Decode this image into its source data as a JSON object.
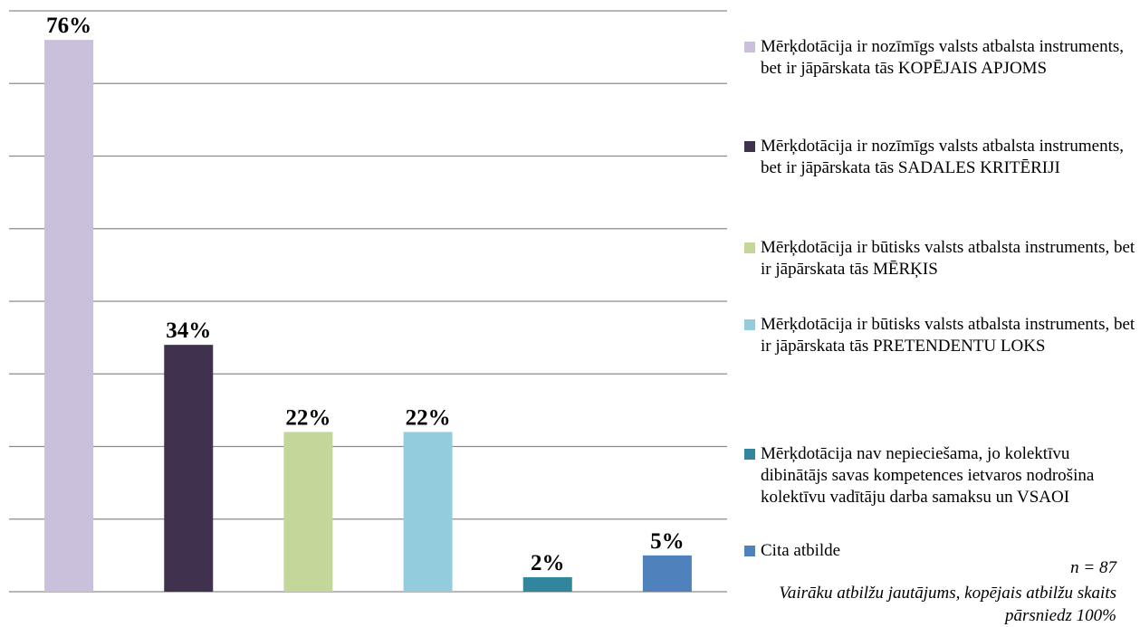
{
  "chart_data": {
    "type": "bar",
    "series": [
      {
        "name": "Mērķdotācija ir nozīmīgs valsts atbalsta instruments, bet ir jāpārskata tās KOPĒJAIS APJOMS",
        "color": "#cbc0dc",
        "values": [
          76
        ],
        "value_labels": [
          "76%"
        ]
      },
      {
        "name": "Mērķdotācija ir nozīmīgs valsts atbalsta instruments, bet ir jāpārskata tās SADALES KRITĒRIJI",
        "color": "#40324f",
        "values": [
          34
        ],
        "value_labels": [
          "34%"
        ]
      },
      {
        "name": "Mērķdotācija ir būtisks valsts atbalsta instruments, bet ir jāpārskata tās MĒRĶIS",
        "color": "#c4d79b",
        "values": [
          22
        ],
        "value_labels": [
          "22%"
        ]
      },
      {
        "name": "Mērķdotācija ir būtisks valsts atbalsta instruments, bet ir jāpārskata tās PRETENDENTU LOKS",
        "color": "#93cddd",
        "values": [
          22
        ],
        "value_labels": [
          "22%"
        ]
      },
      {
        "name": "Mērķdotācija nav nepieciešama, jo kolektīvu dibinātājs savas kompetences ietvaros nodrošina kolektīvu vadītāju darba samaksu un VSAOI",
        "color": "#31859c",
        "values": [
          2
        ],
        "value_labels": [
          "2%"
        ]
      },
      {
        "name": "Cita atbilde",
        "color": "#4f81bd",
        "values": [
          5
        ],
        "value_labels": [
          "5%"
        ]
      }
    ],
    "ylim": [
      0,
      80
    ],
    "yticks": [
      0,
      10,
      20,
      30,
      40,
      50,
      60,
      70,
      80
    ],
    "grid": true,
    "annotations": [
      "n = 87",
      "Vairāku atbilžu jautājums, kopējais atbilžu skaits pārsniedz 100%"
    ]
  }
}
